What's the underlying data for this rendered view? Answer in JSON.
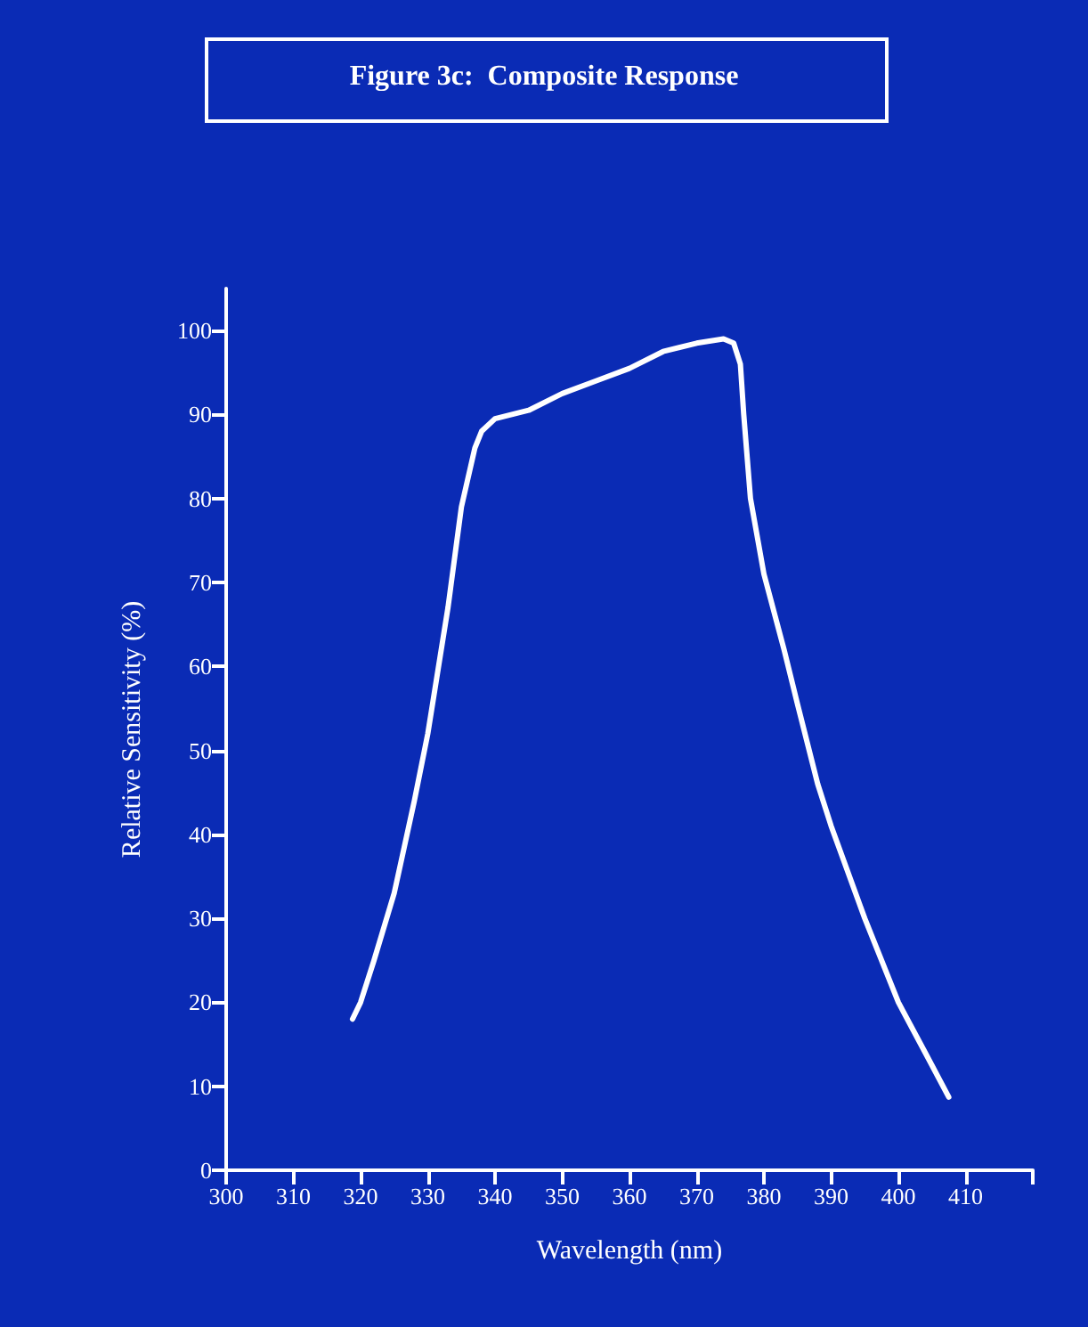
{
  "chart_data": {
    "type": "line",
    "title": "Figure 3c:  Composite Response",
    "xlabel": "Wavelength (nm)",
    "ylabel": "Relative Sensitivity (%)",
    "series": [
      {
        "color": "#ffffff",
        "x": [
          318.8,
          320,
          322,
          325,
          328,
          330,
          333,
          335,
          337,
          338,
          340,
          345,
          350,
          355,
          360,
          365,
          370,
          374,
          375.5,
          376.5,
          377,
          378,
          380,
          383,
          385,
          388,
          390,
          395,
          400,
          404,
          407.5
        ],
        "values": [
          18,
          20,
          25,
          33,
          44,
          52,
          67,
          79,
          86,
          88,
          89.5,
          90.5,
          92.5,
          94,
          95.5,
          97.5,
          98.5,
          99,
          98.5,
          96,
          90,
          80,
          71,
          62,
          55.5,
          46,
          41,
          30,
          20,
          14,
          8.7
        ]
      }
    ],
    "xlim": [
      300,
      420
    ],
    "xticks": [
      300,
      310,
      320,
      330,
      340,
      350,
      360,
      370,
      380,
      390,
      400,
      410,
      {
        "value": 420,
        "label": null
      }
    ],
    "ylim": [
      0,
      105
    ],
    "yticks": [
      0,
      10,
      20,
      30,
      40,
      50,
      60,
      70,
      80,
      90,
      100
    ],
    "grid": false,
    "marker": "none",
    "line_style": "solid"
  }
}
